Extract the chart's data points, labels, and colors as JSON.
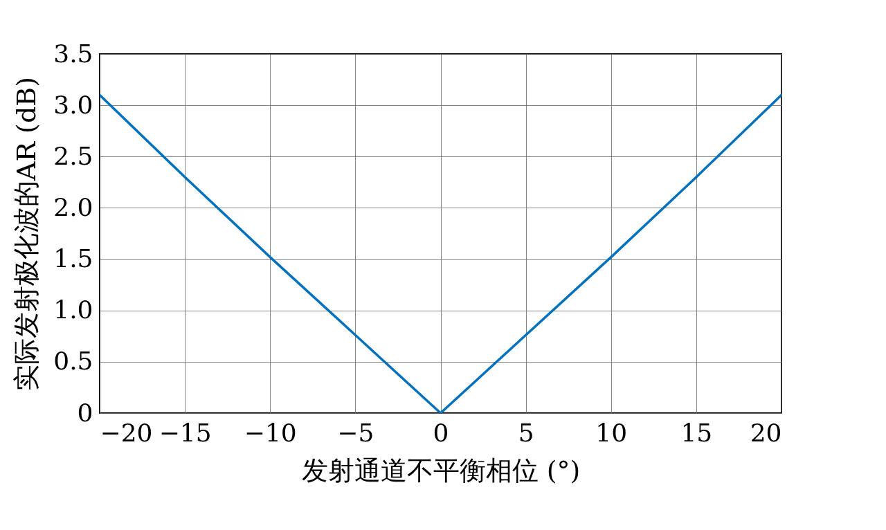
{
  "chart_data": {
    "type": "line",
    "xlabel": "发射通道不平衡相位 (°)",
    "ylabel": "实际发射极化波的AR (dB)",
    "x": [
      -20,
      -15,
      -10,
      -5,
      0,
      5,
      10,
      15,
      20
    ],
    "series": [
      {
        "color": "#0072bd",
        "values": [
          3.1,
          2.3,
          1.52,
          0.76,
          0,
          0.76,
          1.52,
          2.3,
          3.1
        ]
      }
    ],
    "xlim": [
      -20,
      20
    ],
    "xticks": [
      {
        "value": -20,
        "label": "−20"
      },
      {
        "value": -15,
        "label": "−15"
      },
      {
        "value": -10,
        "label": "−10"
      },
      {
        "value": -5,
        "label": "−5"
      },
      0,
      5,
      10,
      15,
      20
    ],
    "ylim": [
      0,
      3.5
    ],
    "yticks": [
      0,
      0.5,
      {
        "value": 1,
        "label": "1.0"
      },
      1.5,
      {
        "value": 2,
        "label": "2.0"
      },
      2.5,
      {
        "value": 3,
        "label": "3.0"
      },
      3.5
    ],
    "grid": true,
    "line_style": "solid",
    "marker": "none"
  }
}
